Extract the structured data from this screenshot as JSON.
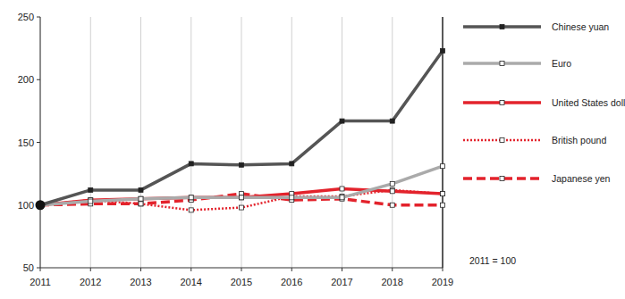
{
  "chart_data": {
    "type": "line",
    "annotation": "2011 = 100",
    "x": [
      2011,
      2012,
      2013,
      2014,
      2015,
      2016,
      2017,
      2018,
      2019
    ],
    "xlim": [
      2011,
      2019
    ],
    "xticks": [
      2011,
      2012,
      2013,
      2014,
      2015,
      2016,
      2017,
      2018,
      2019
    ],
    "ylim": [
      50,
      250
    ],
    "yticks": [
      50,
      100,
      150,
      200,
      250
    ],
    "grid": true,
    "legend": "right",
    "series": [
      {
        "name": "Chinese yuan",
        "color": "#555555",
        "marker": "square",
        "line_style": "solid",
        "values": [
          100,
          112,
          112,
          133,
          132,
          133,
          167,
          167,
          223
        ]
      },
      {
        "name": "Euro",
        "color": "#aaaaaa",
        "marker": "square",
        "line_style": "solid",
        "values": [
          100,
          103,
          105,
          106,
          106,
          106,
          106,
          117,
          131
        ]
      },
      {
        "name": "United States dollar",
        "color": "#e3232c",
        "marker": "square",
        "line_style": "solid",
        "values": [
          100,
          104,
          105,
          106,
          106,
          109,
          113,
          111,
          109
        ]
      },
      {
        "name": "British pound",
        "color": "#e3232c",
        "marker": "square",
        "line_style": "dotted",
        "values": [
          100,
          104,
          101,
          96,
          98,
          107,
          107,
          112,
          109
        ]
      },
      {
        "name": "Japanese yen",
        "color": "#e3232c",
        "marker": "square",
        "line_style": "dashed",
        "values": [
          100,
          101,
          101,
          104,
          109,
          104,
          105,
          100,
          100
        ]
      }
    ]
  }
}
